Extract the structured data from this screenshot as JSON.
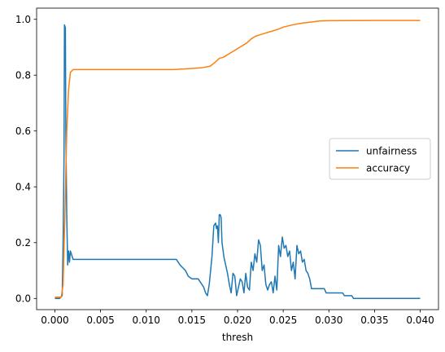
{
  "chart_data": {
    "type": "line",
    "title": "",
    "xlabel": "thresh",
    "ylabel": "",
    "xlim": [
      -0.002,
      0.042
    ],
    "ylim": [
      -0.04,
      1.04
    ],
    "grid": false,
    "legend_position": "center-right",
    "x_ticks": [
      0.0,
      0.005,
      0.01,
      0.015,
      0.02,
      0.025,
      0.03,
      0.035,
      0.04
    ],
    "x_tick_labels": [
      "0.000",
      "0.005",
      "0.010",
      "0.015",
      "0.020",
      "0.025",
      "0.030",
      "0.035",
      "0.040"
    ],
    "y_ticks": [
      0.0,
      0.2,
      0.4,
      0.6,
      0.8,
      1.0
    ],
    "y_tick_labels": [
      "0.0",
      "0.2",
      "0.4",
      "0.6",
      "0.8",
      "1.0"
    ],
    "series": [
      {
        "name": "unfairness",
        "color": "#1f77b4",
        "points": [
          [
            0.0,
            0.0
          ],
          [
            0.0005,
            0.0
          ],
          [
            0.0008,
            0.01
          ],
          [
            0.0009,
            0.2
          ],
          [
            0.001,
            0.5
          ],
          [
            0.00105,
            0.98
          ],
          [
            0.00115,
            0.97
          ],
          [
            0.0012,
            0.6
          ],
          [
            0.0013,
            0.3
          ],
          [
            0.0014,
            0.12
          ],
          [
            0.0015,
            0.17
          ],
          [
            0.0016,
            0.13
          ],
          [
            0.0017,
            0.17
          ],
          [
            0.0018,
            0.16
          ],
          [
            0.002,
            0.14
          ],
          [
            0.005,
            0.14
          ],
          [
            0.01,
            0.14
          ],
          [
            0.0133,
            0.14
          ],
          [
            0.0137,
            0.12
          ],
          [
            0.014,
            0.11
          ],
          [
            0.0143,
            0.1
          ],
          [
            0.0146,
            0.08
          ],
          [
            0.015,
            0.07
          ],
          [
            0.0157,
            0.07
          ],
          [
            0.016,
            0.055
          ],
          [
            0.0163,
            0.04
          ],
          [
            0.0165,
            0.02
          ],
          [
            0.0167,
            0.01
          ],
          [
            0.0169,
            0.05
          ],
          [
            0.0172,
            0.15
          ],
          [
            0.0174,
            0.26
          ],
          [
            0.0176,
            0.27
          ],
          [
            0.0177,
            0.25
          ],
          [
            0.0178,
            0.26
          ],
          [
            0.0179,
            0.2
          ],
          [
            0.018,
            0.3
          ],
          [
            0.0181,
            0.3
          ],
          [
            0.0182,
            0.29
          ],
          [
            0.0183,
            0.2
          ],
          [
            0.0185,
            0.15
          ],
          [
            0.0187,
            0.12
          ],
          [
            0.0189,
            0.09
          ],
          [
            0.0191,
            0.05
          ],
          [
            0.0193,
            0.02
          ],
          [
            0.0195,
            0.09
          ],
          [
            0.0197,
            0.08
          ],
          [
            0.0199,
            0.01
          ],
          [
            0.0201,
            0.04
          ],
          [
            0.0203,
            0.07
          ],
          [
            0.0205,
            0.06
          ],
          [
            0.0207,
            0.02
          ],
          [
            0.0209,
            0.09
          ],
          [
            0.0211,
            0.04
          ],
          [
            0.0213,
            0.03
          ],
          [
            0.0215,
            0.13
          ],
          [
            0.0217,
            0.1
          ],
          [
            0.0219,
            0.16
          ],
          [
            0.0221,
            0.13
          ],
          [
            0.0223,
            0.21
          ],
          [
            0.0225,
            0.19
          ],
          [
            0.0227,
            0.1
          ],
          [
            0.0229,
            0.12
          ],
          [
            0.0231,
            0.05
          ],
          [
            0.0233,
            0.03
          ],
          [
            0.0235,
            0.05
          ],
          [
            0.0237,
            0.06
          ],
          [
            0.0239,
            0.02
          ],
          [
            0.0241,
            0.08
          ],
          [
            0.0243,
            0.03
          ],
          [
            0.0245,
            0.19
          ],
          [
            0.0247,
            0.15
          ],
          [
            0.0249,
            0.22
          ],
          [
            0.0251,
            0.18
          ],
          [
            0.0253,
            0.19
          ],
          [
            0.0255,
            0.15
          ],
          [
            0.0257,
            0.17
          ],
          [
            0.0259,
            0.1
          ],
          [
            0.0261,
            0.13
          ],
          [
            0.0263,
            0.07
          ],
          [
            0.0265,
            0.19
          ],
          [
            0.0267,
            0.16
          ],
          [
            0.0269,
            0.17
          ],
          [
            0.0271,
            0.13
          ],
          [
            0.0273,
            0.14
          ],
          [
            0.0275,
            0.1
          ],
          [
            0.0277,
            0.09
          ],
          [
            0.0279,
            0.07
          ],
          [
            0.0281,
            0.035
          ],
          [
            0.0295,
            0.035
          ],
          [
            0.0297,
            0.02
          ],
          [
            0.0315,
            0.02
          ],
          [
            0.0317,
            0.01
          ],
          [
            0.0325,
            0.01
          ],
          [
            0.0327,
            0.0
          ],
          [
            0.04,
            0.0
          ]
        ]
      },
      {
        "name": "accuracy",
        "color": "#ff7f0e",
        "points": [
          [
            0.0,
            0.005
          ],
          [
            0.0007,
            0.005
          ],
          [
            0.0009,
            0.05
          ],
          [
            0.0011,
            0.3
          ],
          [
            0.0013,
            0.6
          ],
          [
            0.0015,
            0.75
          ],
          [
            0.0017,
            0.81
          ],
          [
            0.002,
            0.82
          ],
          [
            0.005,
            0.82
          ],
          [
            0.01,
            0.82
          ],
          [
            0.013,
            0.82
          ],
          [
            0.0145,
            0.823
          ],
          [
            0.016,
            0.826
          ],
          [
            0.017,
            0.832
          ],
          [
            0.0175,
            0.845
          ],
          [
            0.018,
            0.86
          ],
          [
            0.0185,
            0.865
          ],
          [
            0.019,
            0.875
          ],
          [
            0.0195,
            0.885
          ],
          [
            0.02,
            0.895
          ],
          [
            0.0205,
            0.905
          ],
          [
            0.021,
            0.915
          ],
          [
            0.0215,
            0.93
          ],
          [
            0.022,
            0.94
          ],
          [
            0.0225,
            0.945
          ],
          [
            0.023,
            0.95
          ],
          [
            0.0235,
            0.955
          ],
          [
            0.024,
            0.96
          ],
          [
            0.0245,
            0.965
          ],
          [
            0.025,
            0.972
          ],
          [
            0.026,
            0.98
          ],
          [
            0.027,
            0.986
          ],
          [
            0.028,
            0.99
          ],
          [
            0.029,
            0.994
          ],
          [
            0.03,
            0.995
          ],
          [
            0.035,
            0.996
          ],
          [
            0.04,
            0.996
          ]
        ]
      }
    ]
  }
}
